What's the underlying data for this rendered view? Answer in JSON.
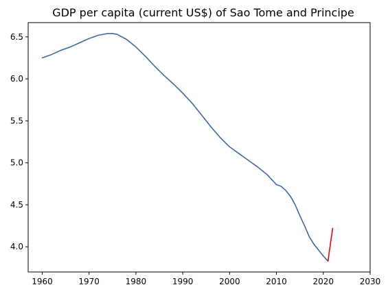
{
  "chart_data": {
    "type": "line",
    "title": "GDP per capita (current US$) of Sao Tome and Principe",
    "xlabel": "",
    "ylabel": "",
    "xlim": [
      1957,
      2030
    ],
    "ylim": [
      3.7,
      6.67
    ],
    "x_ticks": [
      "1960",
      "1970",
      "1980",
      "1990",
      "2000",
      "2010",
      "2020",
      "2030"
    ],
    "y_ticks": [
      "4.0",
      "4.5",
      "5.0",
      "5.5",
      "6.0",
      "6.5"
    ],
    "grid": false,
    "legend": "none",
    "series": [
      {
        "color": "#3a6aa8",
        "x": [
          1960,
          1962,
          1964,
          1966,
          1968,
          1970,
          1972,
          1974,
          1975,
          1976,
          1978,
          1980,
          1982,
          1984,
          1986,
          1988,
          1990,
          1992,
          1994,
          1996,
          1998,
          2000,
          2002,
          2004,
          2006,
          2008,
          2010,
          2011,
          2012,
          2013,
          2014,
          2015,
          2016,
          2017,
          2018,
          2019,
          2020,
          2021
        ],
        "y": [
          6.25,
          6.29,
          6.34,
          6.38,
          6.43,
          6.48,
          6.52,
          6.54,
          6.54,
          6.53,
          6.47,
          6.38,
          6.27,
          6.15,
          6.04,
          5.94,
          5.83,
          5.71,
          5.57,
          5.43,
          5.3,
          5.19,
          5.11,
          5.03,
          4.95,
          4.86,
          4.74,
          4.72,
          4.67,
          4.6,
          4.5,
          4.37,
          4.25,
          4.12,
          4.03,
          3.96,
          3.89,
          3.83
        ]
      },
      {
        "color": "#e8000b",
        "x": [
          2021,
          2022
        ],
        "y": [
          3.83,
          4.22
        ]
      }
    ]
  }
}
